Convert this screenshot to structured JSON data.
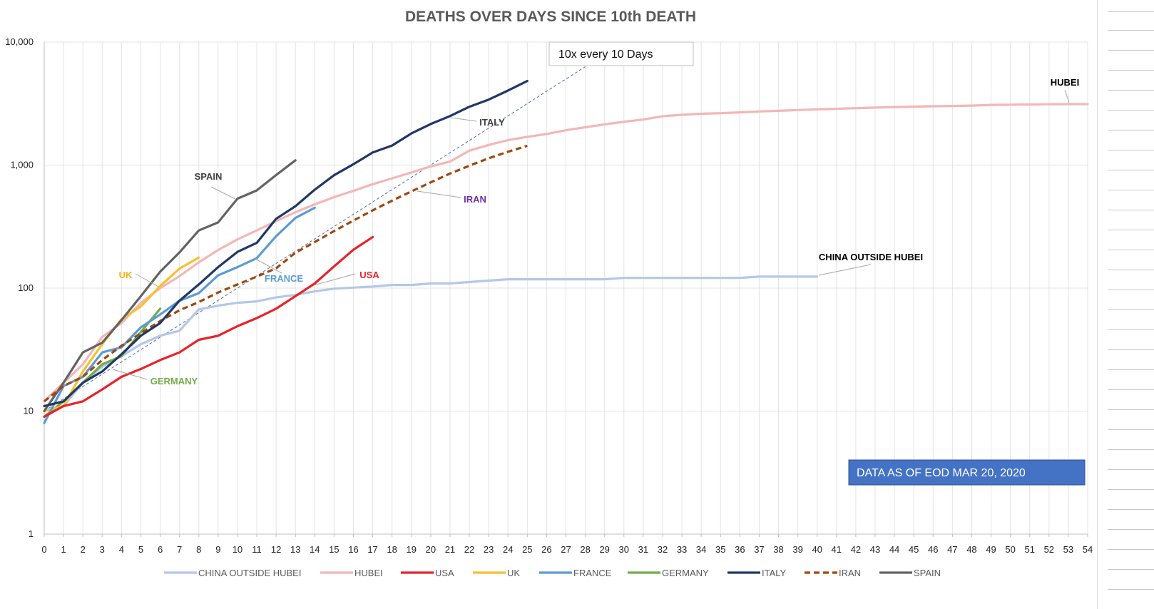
{
  "chart_data": {
    "type": "line",
    "title": "DEATHS OVER DAYS SINCE 10th DEATH",
    "xlabel": "",
    "ylabel": "",
    "y_scale": "log",
    "ylim": [
      1,
      10000
    ],
    "xlim": [
      0,
      54
    ],
    "y_ticks": [
      "1",
      "10",
      "100",
      "1,000",
      "10,000"
    ],
    "y_tick_values": [
      1,
      10,
      100,
      1000,
      10000
    ],
    "grid": true,
    "legend_position": "bottom",
    "series": [
      {
        "name": "CHINA OUTSIDE HUBEI",
        "color": "#b4c7e7",
        "dash": false,
        "x": [
          0,
          1,
          2,
          3,
          4,
          5,
          6,
          7,
          8,
          9,
          10,
          11,
          12,
          13,
          14,
          15,
          16,
          17,
          18,
          19,
          20,
          21,
          22,
          23,
          24,
          25,
          26,
          27,
          28,
          29,
          30,
          31,
          32,
          33,
          34,
          35,
          36,
          37,
          38,
          39,
          40
        ],
        "y": [
          9,
          11,
          17,
          23,
          28,
          35,
          41,
          45,
          67,
          72,
          76,
          78,
          84,
          88,
          94,
          99,
          101,
          103,
          106,
          106,
          109,
          109,
          112,
          115,
          118,
          118,
          118,
          118,
          118,
          118,
          121,
          121,
          121,
          121,
          121,
          121,
          121,
          124,
          124,
          124,
          124
        ]
      },
      {
        "name": "HUBEI",
        "color": "#f4b6b6",
        "dash": false,
        "x": [
          0,
          1,
          2,
          3,
          4,
          5,
          6,
          7,
          8,
          9,
          10,
          11,
          12,
          13,
          14,
          15,
          16,
          17,
          18,
          19,
          20,
          21,
          22,
          23,
          24,
          25,
          26,
          27,
          28,
          29,
          30,
          31,
          32,
          33,
          34,
          35,
          36,
          37,
          38,
          39,
          40,
          41,
          42,
          43,
          44,
          45,
          46,
          47,
          48,
          49,
          50,
          51,
          52,
          53,
          54
        ],
        "y": [
          12,
          17,
          24,
          40,
          52,
          76,
          100,
          125,
          162,
          204,
          249,
          294,
          350,
          414,
          479,
          549,
          618,
          699,
          780,
          871,
          975,
          1068,
          1310,
          1457,
          1596,
          1696,
          1789,
          1921,
          2029,
          2144,
          2250,
          2346,
          2495,
          2563,
          2615,
          2641,
          2682,
          2727,
          2761,
          2803,
          2835,
          2871,
          2902,
          2931,
          2959,
          2986,
          3008,
          3024,
          3046,
          3085,
          3099,
          3111,
          3122,
          3130,
          3132
        ]
      },
      {
        "name": "USA",
        "color": "#e8232a",
        "dash": false,
        "x": [
          0,
          1,
          2,
          3,
          4,
          5,
          6,
          7,
          8,
          9,
          10,
          11,
          12,
          13,
          14,
          15,
          16,
          17
        ],
        "y": [
          9,
          11,
          12,
          15,
          19,
          22,
          26,
          30,
          38,
          41,
          49,
          57,
          68,
          86,
          109,
          150,
          205,
          260
        ]
      },
      {
        "name": "UK",
        "color": "#f7c02f",
        "dash": false,
        "x": [
          0,
          1,
          2,
          3,
          4,
          5,
          6,
          7,
          8
        ],
        "y": [
          10,
          11,
          21,
          35,
          56,
          71,
          104,
          144,
          177
        ]
      },
      {
        "name": "FRANCE",
        "color": "#5b9bd5",
        "dash": false,
        "x": [
          0,
          1,
          2,
          3,
          4,
          5,
          6,
          7,
          8,
          9,
          10,
          11,
          12,
          13,
          14
        ],
        "y": [
          8,
          16,
          19,
          30,
          33,
          48,
          61,
          79,
          91,
          127,
          148,
          175,
          264,
          372,
          450
        ]
      },
      {
        "name": "GERMANY",
        "color": "#70ad47",
        "dash": false,
        "x": [
          0,
          1,
          2,
          3,
          4,
          5,
          6
        ],
        "y": [
          9,
          12,
          17,
          24,
          28,
          44,
          68
        ]
      },
      {
        "name": "ITALY",
        "color": "#203864",
        "dash": false,
        "x": [
          0,
          1,
          2,
          3,
          4,
          5,
          6,
          7,
          8,
          9,
          10,
          11,
          12,
          13,
          14,
          15,
          16,
          17,
          18,
          19,
          20,
          21,
          22,
          23,
          24,
          25
        ],
        "y": [
          11,
          12,
          17,
          21,
          29,
          41,
          52,
          79,
          107,
          148,
          197,
          233,
          366,
          463,
          631,
          827,
          1016,
          1266,
          1441,
          1809,
          2158,
          2503,
          2978,
          3405,
          4032,
          4825
        ]
      },
      {
        "name": "IRAN",
        "color": "#9e480e",
        "dash": true,
        "x": [
          0,
          1,
          2,
          3,
          4,
          5,
          6,
          7,
          8,
          9,
          10,
          11,
          12,
          13,
          14,
          15,
          16,
          17,
          18,
          19,
          20,
          21,
          22,
          23,
          24,
          25
        ],
        "y": [
          12,
          16,
          19,
          26,
          34,
          43,
          54,
          66,
          77,
          92,
          107,
          124,
          145,
          194,
          237,
          291,
          354,
          429,
          514,
          611,
          724,
          853,
          988,
          1135,
          1284,
          1433
        ]
      },
      {
        "name": "SPAIN",
        "color": "#636363",
        "dash": false,
        "x": [
          0,
          1,
          2,
          3,
          4,
          5,
          6,
          7,
          8,
          9,
          10,
          11,
          12,
          13
        ],
        "y": [
          10,
          17,
          30,
          36,
          55,
          86,
          136,
          195,
          294,
          342,
          533,
          623,
          830,
          1093
        ]
      }
    ],
    "reference_line": {
      "label": "10x every 10 Days",
      "x": [
        0,
        28
      ],
      "y": [
        10,
        6310
      ],
      "color": "#4a6fa5"
    },
    "annotations": [
      {
        "text": "SPAIN",
        "color": "#404040"
      },
      {
        "text": "ITALY",
        "color": "#404040"
      },
      {
        "text": "IRAN",
        "color": "#7030a0"
      },
      {
        "text": "UK",
        "color": "#f2b417"
      },
      {
        "text": "FRANCE",
        "color": "#5b9bd5"
      },
      {
        "text": "USA",
        "color": "#e8232a"
      },
      {
        "text": "GERMANY",
        "color": "#70ad47"
      },
      {
        "text": "HUBEI",
        "color": "#000000"
      },
      {
        "text": "CHINA OUTSIDE HUBEI",
        "color": "#000000"
      }
    ],
    "note_box": {
      "text": "DATA AS OF EOD MAR 20, 2020",
      "background": "#4472c4",
      "color": "#ffffff"
    }
  }
}
